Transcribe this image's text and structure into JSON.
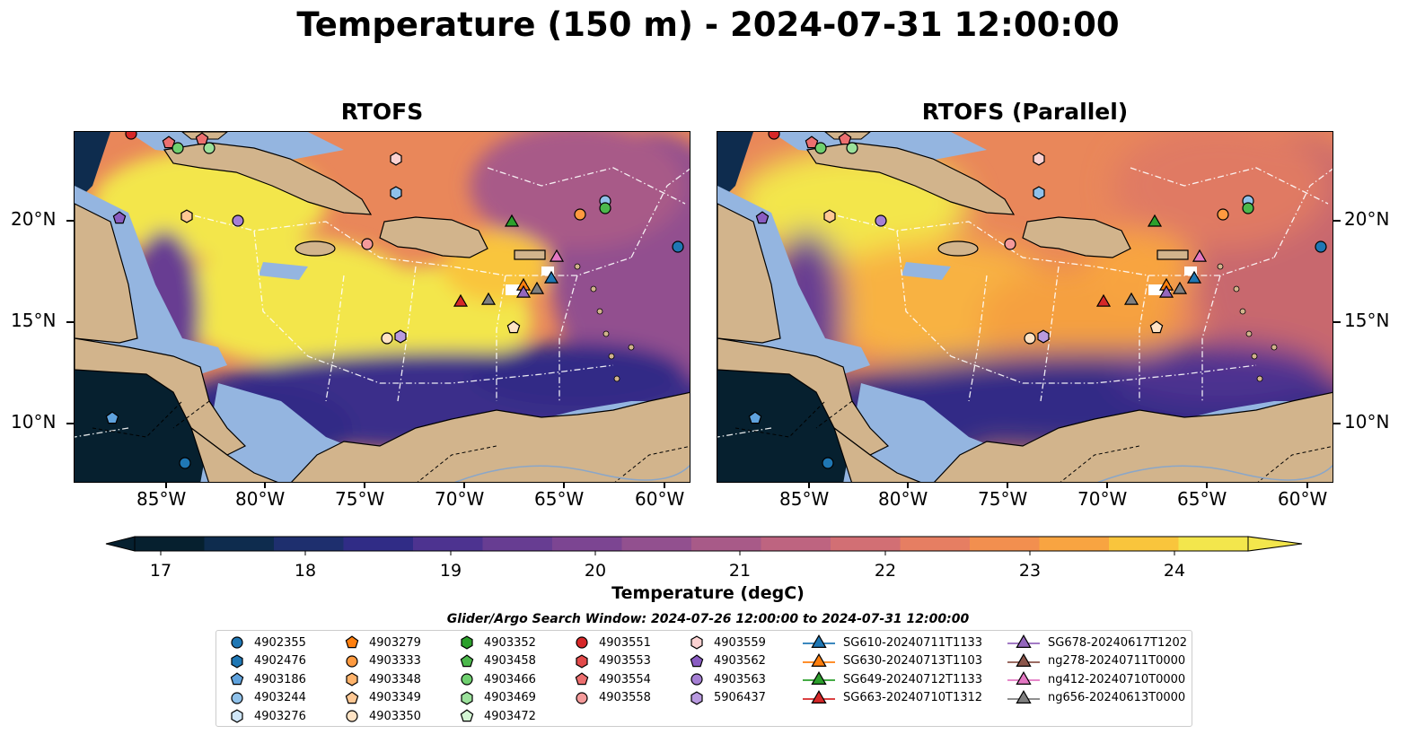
{
  "title": "Temperature (150 m) - 2024-07-31 12:00:00",
  "panels": [
    {
      "title": "RTOFS"
    },
    {
      "title": "RTOFS (Parallel)"
    }
  ],
  "lon_ticks": [
    "85°W",
    "80°W",
    "75°W",
    "70°W",
    "65°W",
    "60°W"
  ],
  "lat_ticks": [
    "20°N",
    "15°N",
    "10°N"
  ],
  "colorbar": {
    "label": "Temperature (degC)",
    "ticks": [
      "17",
      "18",
      "19",
      "20",
      "21",
      "22",
      "23",
      "24"
    ],
    "colors": [
      "#06202f",
      "#0e2c4e",
      "#1e2f6e",
      "#302c86",
      "#4d3390",
      "#673d92",
      "#7c4592",
      "#92508f",
      "#a85a88",
      "#be6480",
      "#d26f74",
      "#e67e62",
      "#f28f4f",
      "#f8a441",
      "#f9c53c",
      "#f3e64c"
    ]
  },
  "search_window": "Glider/Argo Search Window: 2024-07-26 12:00:00 to 2024-07-31 12:00:00",
  "legend": {
    "columns": [
      [
        {
          "label": "4902355",
          "marker": "circle",
          "color": "#1f77b4"
        },
        {
          "label": "4902476",
          "marker": "hexagon",
          "color": "#1f77b4"
        },
        {
          "label": "4903186",
          "marker": "pentagon",
          "color": "#5fa2dd"
        },
        {
          "label": "4903244",
          "marker": "circle",
          "color": "#8fc1ea"
        },
        {
          "label": "4903276",
          "marker": "hexagon",
          "color": "#cfe6f8"
        }
      ],
      [
        {
          "label": "4903279",
          "marker": "pentagon",
          "color": "#ff7f0e"
        },
        {
          "label": "4903333",
          "marker": "circle",
          "color": "#ff9a40"
        },
        {
          "label": "4903348",
          "marker": "hexagon",
          "color": "#ffb36b"
        },
        {
          "label": "4903349",
          "marker": "pentagon",
          "color": "#ffc894"
        },
        {
          "label": "4903350",
          "marker": "circle",
          "color": "#ffe3c4"
        }
      ],
      [
        {
          "label": "4903352",
          "marker": "hexagon",
          "color": "#2ca02c"
        },
        {
          "label": "4903458",
          "marker": "pentagon",
          "color": "#4cb84c"
        },
        {
          "label": "4903466",
          "marker": "circle",
          "color": "#6fd06f"
        },
        {
          "label": "4903469",
          "marker": "hexagon",
          "color": "#9be19b"
        },
        {
          "label": "4903472",
          "marker": "pentagon",
          "color": "#d4f5d4"
        }
      ],
      [
        {
          "label": "4903551",
          "marker": "circle",
          "color": "#d62728"
        },
        {
          "label": "4903553",
          "marker": "hexagon",
          "color": "#e24a4a"
        },
        {
          "label": "4903554",
          "marker": "pentagon",
          "color": "#ec6f6f"
        },
        {
          "label": "4903558",
          "marker": "circle",
          "color": "#f49a9a"
        }
      ],
      [
        {
          "label": "4903559",
          "marker": "hexagon",
          "color": "#fbd2d2"
        },
        {
          "label": "4903562",
          "marker": "pentagon",
          "color": "#8a5cc2"
        },
        {
          "label": "4903563",
          "marker": "circle",
          "color": "#a57fd4"
        },
        {
          "label": "5906437",
          "marker": "hexagon",
          "color": "#b99ae0"
        }
      ],
      [
        {
          "label": "SG610-20240711T1133",
          "marker": "triangle",
          "color": "#1f77b4"
        },
        {
          "label": "SG630-20240713T1103",
          "marker": "triangle",
          "color": "#ff7f0e"
        },
        {
          "label": "SG649-20240712T1133",
          "marker": "triangle",
          "color": "#2ca02c"
        },
        {
          "label": "SG663-20240710T1312",
          "marker": "triangle",
          "color": "#d62728"
        }
      ],
      [
        {
          "label": "SG678-20240617T1202",
          "marker": "triangle",
          "color": "#9467bd"
        },
        {
          "label": "ng278-20240711T0000",
          "marker": "triangle",
          "color": "#8c564b"
        },
        {
          "label": "ng412-20240710T0000",
          "marker": "triangle",
          "color": "#e377c2"
        },
        {
          "label": "ng656-20240613T0000",
          "marker": "triangle",
          "color": "#7f7f7f"
        }
      ]
    ]
  },
  "colors": {
    "land": "#d2b48c",
    "shelf": "#94b5e0",
    "deep": "#06202f",
    "eez": "#ffffff"
  }
}
